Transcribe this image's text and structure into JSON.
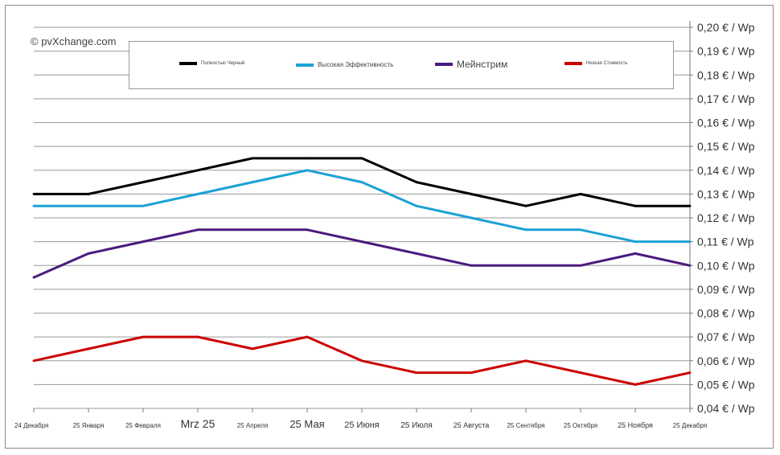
{
  "copyright": "© pvXchange.com",
  "chart_data": {
    "type": "line",
    "title": "",
    "xlabel": "",
    "ylabel": "",
    "categories": [
      "24 Декабря",
      "25 Января",
      "25 Февраля",
      "Mrz 25",
      "25 Апреля",
      "25 Мая",
      "25 Июня",
      "25 Июля",
      "25 Августа",
      "25 Сентября",
      "25 Октября",
      "25 Ноября",
      "25 Декабря"
    ],
    "ylim": [
      0.04,
      0.2
    ],
    "yticks": [
      0.04,
      0.05,
      0.06,
      0.07,
      0.08,
      0.09,
      0.1,
      0.11,
      0.12,
      0.13,
      0.14,
      0.15,
      0.16,
      0.17,
      0.18,
      0.19,
      0.2
    ],
    "ytick_labels": [
      "0,04 € / Wp",
      "0,05 € / Wp",
      "0,06 € / Wp",
      "0,07 € / Wp",
      "0,08 € / Wp",
      "0,09 € / Wp",
      "0,10 € / Wp",
      "0,11 € / Wp",
      "0,12 € / Wp",
      "0,13 € / Wp",
      "0,14 € / Wp",
      "0,15 € / Wp",
      "0,16 € / Wp",
      "0,17 € / Wp",
      "0,18 € / Wp",
      "0,19 € / Wp",
      "0,20 € / Wp"
    ],
    "grid": true,
    "legend_position": "top",
    "series": [
      {
        "name": "Полностью Черный",
        "color": "#000000",
        "values": [
          0.13,
          0.13,
          0.135,
          0.14,
          0.145,
          0.145,
          0.145,
          0.135,
          0.13,
          0.125,
          0.13,
          0.125,
          0.125
        ]
      },
      {
        "name": "Высокая Эффективность",
        "color": "#1ba1d6",
        "values": [
          0.125,
          0.125,
          0.125,
          0.13,
          0.135,
          0.14,
          0.135,
          0.125,
          0.12,
          0.115,
          0.115,
          0.11,
          0.11
        ]
      },
      {
        "name": "Мейнстрим",
        "color": "#4b1a7f",
        "values": [
          0.095,
          0.105,
          0.11,
          0.115,
          0.115,
          0.115,
          0.11,
          0.105,
          0.1,
          0.1,
          0.1,
          0.105,
          0.1
        ]
      },
      {
        "name": "Низкая Стоимость",
        "color": "#cc0000",
        "values": [
          0.06,
          0.065,
          0.07,
          0.07,
          0.065,
          0.07,
          0.06,
          0.055,
          0.055,
          0.06,
          0.055,
          0.05,
          0.055
        ]
      }
    ]
  }
}
